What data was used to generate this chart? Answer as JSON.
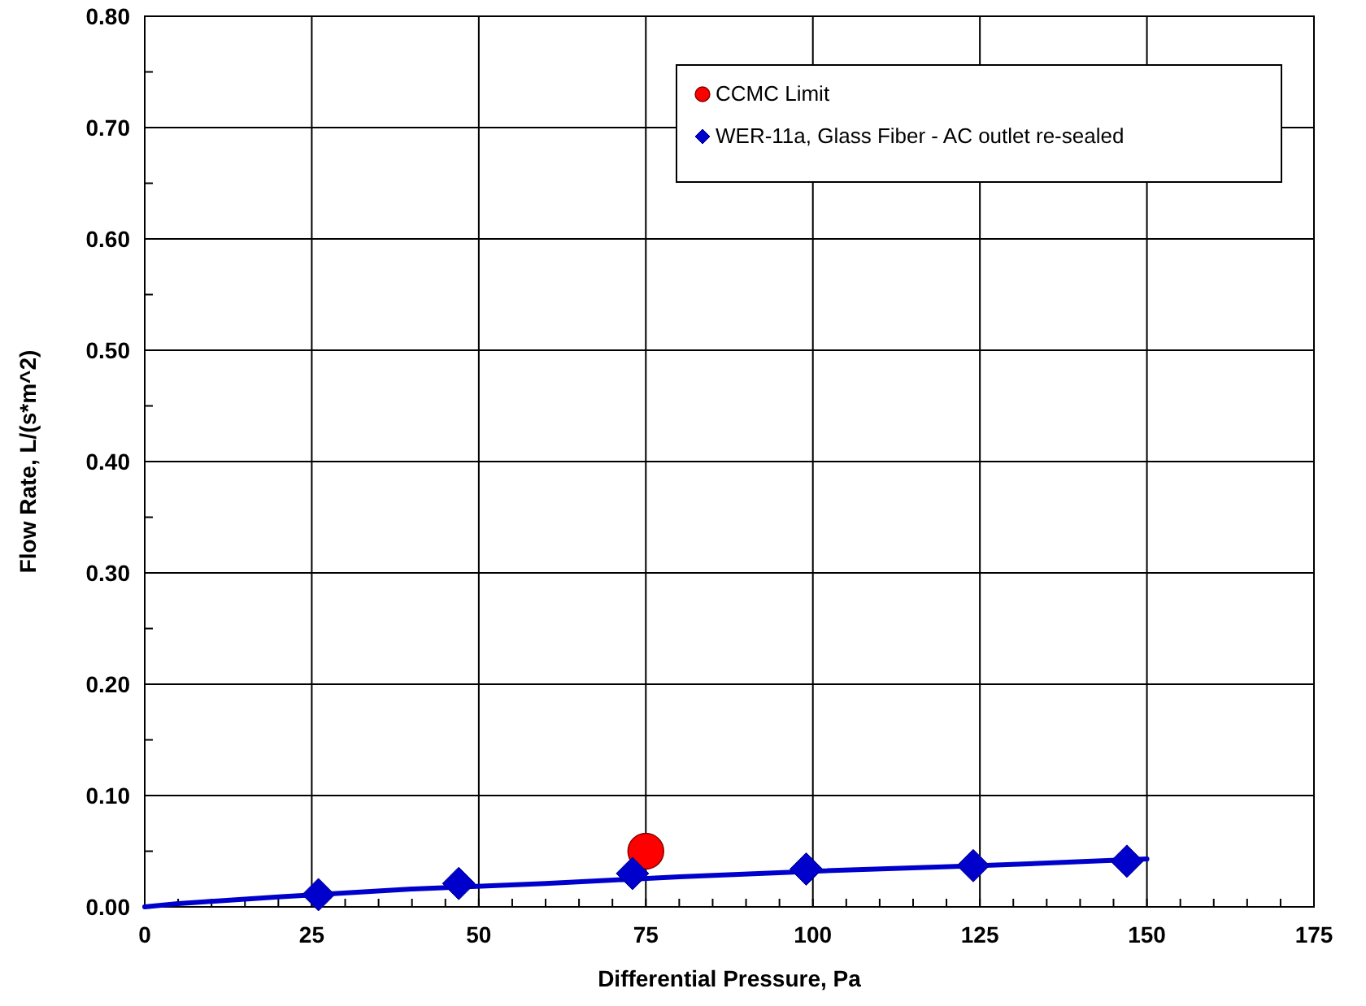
{
  "chart_data": {
    "type": "scatter",
    "xlabel": "Differential Pressure, Pa",
    "ylabel": "Flow Rate, L/(s*m^2)",
    "xlim": [
      0,
      175
    ],
    "ylim": [
      0,
      0.8
    ],
    "xticks": [
      0,
      {
        "value": 5,
        "label": null
      },
      {
        "value": 10,
        "label": null
      },
      {
        "value": 15,
        "label": null
      },
      {
        "value": 20,
        "label": null
      },
      25,
      {
        "value": 30,
        "label": null
      },
      {
        "value": 35,
        "label": null
      },
      {
        "value": 40,
        "label": null
      },
      {
        "value": 45,
        "label": null
      },
      50,
      {
        "value": 55,
        "label": null
      },
      {
        "value": 60,
        "label": null
      },
      {
        "value": 65,
        "label": null
      },
      {
        "value": 70,
        "label": null
      },
      75,
      {
        "value": 80,
        "label": null
      },
      {
        "value": 85,
        "label": null
      },
      {
        "value": 90,
        "label": null
      },
      {
        "value": 95,
        "label": null
      },
      100,
      {
        "value": 105,
        "label": null
      },
      {
        "value": 110,
        "label": null
      },
      {
        "value": 115,
        "label": null
      },
      {
        "value": 120,
        "label": null
      },
      125,
      {
        "value": 130,
        "label": null
      },
      {
        "value": 135,
        "label": null
      },
      {
        "value": 140,
        "label": null
      },
      {
        "value": 145,
        "label": null
      },
      150,
      {
        "value": 155,
        "label": null
      },
      {
        "value": 160,
        "label": null
      },
      {
        "value": 165,
        "label": null
      },
      {
        "value": 170,
        "label": null
      },
      175
    ],
    "yticks": [
      {
        "value": 0,
        "label": "0.00"
      },
      {
        "value": 0.05,
        "label": null
      },
      {
        "value": 0.1,
        "label": "0.10"
      },
      {
        "value": 0.15,
        "label": null
      },
      {
        "value": 0.2,
        "label": "0.20"
      },
      {
        "value": 0.25,
        "label": null
      },
      {
        "value": 0.3,
        "label": "0.30"
      },
      {
        "value": 0.35,
        "label": null
      },
      {
        "value": 0.4,
        "label": "0.40"
      },
      {
        "value": 0.45,
        "label": null
      },
      {
        "value": 0.5,
        "label": "0.50"
      },
      {
        "value": 0.55,
        "label": null
      },
      {
        "value": 0.6,
        "label": "0.60"
      },
      {
        "value": 0.65,
        "label": null
      },
      {
        "value": 0.7,
        "label": "0.70"
      },
      {
        "value": 0.75,
        "label": null
      },
      {
        "value": 0.8,
        "label": "0.80"
      }
    ],
    "grid": true,
    "legend": "top right",
    "series": [
      {
        "type": "line",
        "color": "#0000cc",
        "marker": "none",
        "line_style": "solid",
        "x": [
          0,
          5,
          10,
          20,
          40,
          60,
          80,
          100,
          125,
          150
        ],
        "values": [
          0,
          0.003,
          0.005,
          0.009,
          0.016,
          0.021,
          0.027,
          0.032,
          0.037,
          0.043
        ]
      },
      {
        "name": "CCMC Limit",
        "color": "#ff0000",
        "marker": "circle",
        "x": [
          75
        ],
        "values": [
          0.05
        ]
      },
      {
        "name": "WER-11a, Glass Fiber - AC outlet re-sealed",
        "color": "#0000cc",
        "marker": "diamond",
        "x": [
          26,
          47,
          73,
          99,
          124,
          147
        ],
        "values": [
          0.011,
          0.021,
          0.03,
          0.034,
          0.037,
          0.041
        ]
      }
    ]
  }
}
